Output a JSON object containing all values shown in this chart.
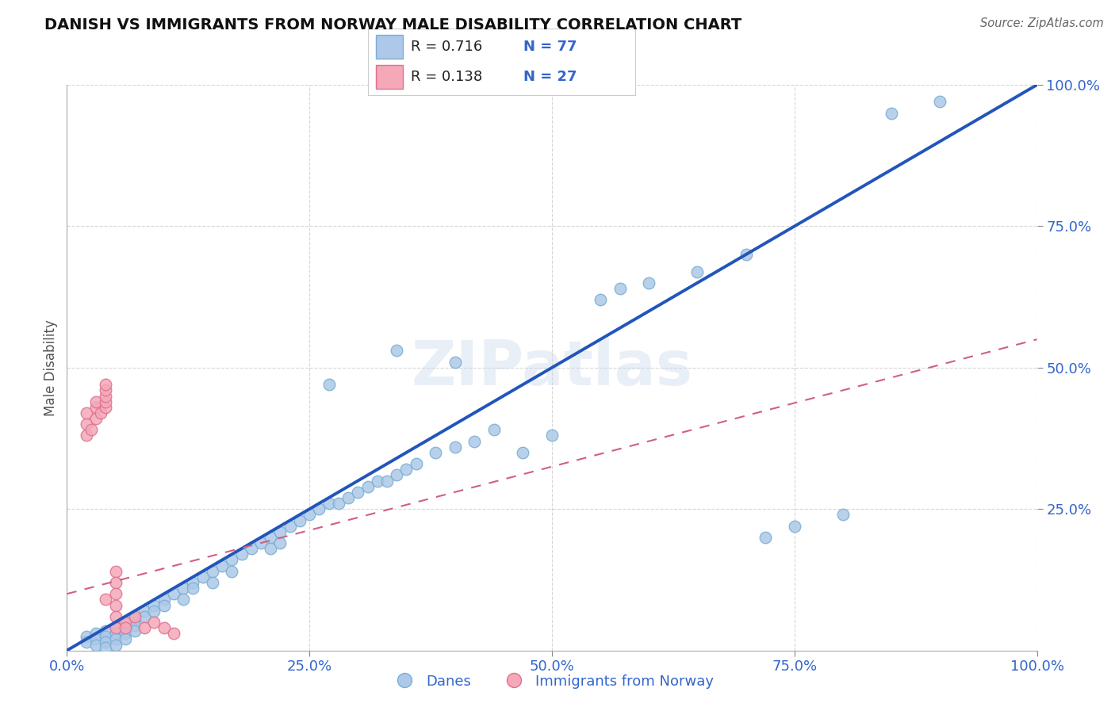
{
  "title": "DANISH VS IMMIGRANTS FROM NORWAY MALE DISABILITY CORRELATION CHART",
  "source": "Source: ZipAtlas.com",
  "ylabel": "Male Disability",
  "watermark": "ZIPatlas",
  "xlim": [
    0.0,
    1.0
  ],
  "ylim": [
    0.0,
    1.0
  ],
  "xticks": [
    0.0,
    0.25,
    0.5,
    0.75,
    1.0
  ],
  "yticks": [
    0.25,
    0.5,
    0.75,
    1.0
  ],
  "xticklabels": [
    "0.0%",
    "25.0%",
    "50.0%",
    "75.0%",
    "100.0%"
  ],
  "yticklabels": [
    "25.0%",
    "50.0%",
    "75.0%",
    "100.0%"
  ],
  "danes_color": "#adc8e8",
  "danes_edge": "#7aafd4",
  "norway_color": "#f4a8b8",
  "norway_edge": "#e07090",
  "danes_line_color": "#2255bb",
  "norway_line_color": "#d06080",
  "danes_line": [
    [
      0.0,
      0.0
    ],
    [
      1.0,
      1.0
    ]
  ],
  "norway_line": [
    [
      0.0,
      0.1
    ],
    [
      1.0,
      0.55
    ]
  ],
  "R_danes": "0.716",
  "N_danes": "77",
  "R_norway": "0.138",
  "N_norway": "27",
  "danes_scatter": [
    [
      0.02,
      0.025
    ],
    [
      0.02,
      0.015
    ],
    [
      0.03,
      0.03
    ],
    [
      0.03,
      0.02
    ],
    [
      0.03,
      0.01
    ],
    [
      0.04,
      0.035
    ],
    [
      0.04,
      0.025
    ],
    [
      0.04,
      0.015
    ],
    [
      0.04,
      0.005
    ],
    [
      0.05,
      0.04
    ],
    [
      0.05,
      0.03
    ],
    [
      0.05,
      0.02
    ],
    [
      0.05,
      0.01
    ],
    [
      0.06,
      0.05
    ],
    [
      0.06,
      0.04
    ],
    [
      0.06,
      0.03
    ],
    [
      0.06,
      0.02
    ],
    [
      0.07,
      0.055
    ],
    [
      0.07,
      0.045
    ],
    [
      0.07,
      0.035
    ],
    [
      0.08,
      0.07
    ],
    [
      0.08,
      0.06
    ],
    [
      0.09,
      0.08
    ],
    [
      0.09,
      0.07
    ],
    [
      0.1,
      0.09
    ],
    [
      0.1,
      0.08
    ],
    [
      0.11,
      0.1
    ],
    [
      0.12,
      0.11
    ],
    [
      0.12,
      0.09
    ],
    [
      0.13,
      0.12
    ],
    [
      0.13,
      0.11
    ],
    [
      0.14,
      0.13
    ],
    [
      0.15,
      0.14
    ],
    [
      0.15,
      0.12
    ],
    [
      0.16,
      0.15
    ],
    [
      0.17,
      0.16
    ],
    [
      0.17,
      0.14
    ],
    [
      0.18,
      0.17
    ],
    [
      0.19,
      0.18
    ],
    [
      0.2,
      0.19
    ],
    [
      0.21,
      0.2
    ],
    [
      0.21,
      0.18
    ],
    [
      0.22,
      0.21
    ],
    [
      0.22,
      0.19
    ],
    [
      0.23,
      0.22
    ],
    [
      0.24,
      0.23
    ],
    [
      0.25,
      0.24
    ],
    [
      0.26,
      0.25
    ],
    [
      0.27,
      0.26
    ],
    [
      0.28,
      0.26
    ],
    [
      0.29,
      0.27
    ],
    [
      0.3,
      0.28
    ],
    [
      0.31,
      0.29
    ],
    [
      0.32,
      0.3
    ],
    [
      0.33,
      0.3
    ],
    [
      0.34,
      0.31
    ],
    [
      0.35,
      0.32
    ],
    [
      0.36,
      0.33
    ],
    [
      0.38,
      0.35
    ],
    [
      0.4,
      0.36
    ],
    [
      0.42,
      0.37
    ],
    [
      0.44,
      0.39
    ],
    [
      0.47,
      0.35
    ],
    [
      0.5,
      0.38
    ],
    [
      0.55,
      0.62
    ],
    [
      0.57,
      0.64
    ],
    [
      0.6,
      0.65
    ],
    [
      0.65,
      0.67
    ],
    [
      0.7,
      0.7
    ],
    [
      0.72,
      0.2
    ],
    [
      0.75,
      0.22
    ],
    [
      0.8,
      0.24
    ],
    [
      0.85,
      0.95
    ],
    [
      0.9,
      0.97
    ],
    [
      0.27,
      0.47
    ],
    [
      0.34,
      0.53
    ],
    [
      0.4,
      0.51
    ]
  ],
  "norway_scatter": [
    [
      0.02,
      0.38
    ],
    [
      0.02,
      0.4
    ],
    [
      0.02,
      0.42
    ],
    [
      0.025,
      0.39
    ],
    [
      0.03,
      0.43
    ],
    [
      0.03,
      0.44
    ],
    [
      0.03,
      0.41
    ],
    [
      0.035,
      0.42
    ],
    [
      0.04,
      0.43
    ],
    [
      0.04,
      0.44
    ],
    [
      0.04,
      0.45
    ],
    [
      0.04,
      0.46
    ],
    [
      0.04,
      0.47
    ],
    [
      0.04,
      0.09
    ],
    [
      0.05,
      0.14
    ],
    [
      0.05,
      0.12
    ],
    [
      0.05,
      0.1
    ],
    [
      0.05,
      0.08
    ],
    [
      0.05,
      0.06
    ],
    [
      0.05,
      0.04
    ],
    [
      0.06,
      0.05
    ],
    [
      0.06,
      0.04
    ],
    [
      0.07,
      0.06
    ],
    [
      0.08,
      0.04
    ],
    [
      0.09,
      0.05
    ],
    [
      0.1,
      0.04
    ],
    [
      0.11,
      0.03
    ]
  ]
}
